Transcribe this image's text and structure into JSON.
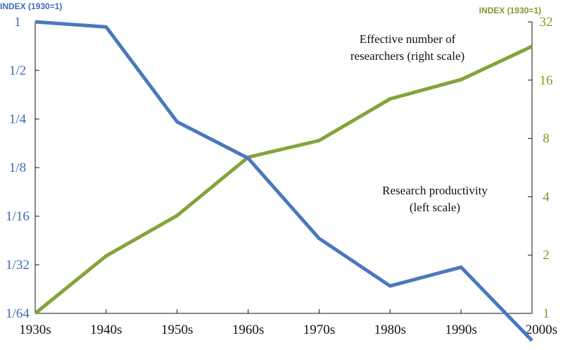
{
  "chart_data": {
    "type": "line",
    "categories": [
      "1930s",
      "1940s",
      "1950s",
      "1960s",
      "1970s",
      "1980s",
      "1990s",
      "2000s"
    ],
    "left_axis": {
      "label": "INDEX (1930=1)",
      "scale": "log2",
      "range": [
        0.015625,
        1
      ],
      "ticks": [
        1,
        0.5,
        0.25,
        0.125,
        0.0625,
        0.03125,
        0.015625
      ],
      "tick_labels": [
        "1",
        "1/2",
        "1/4",
        "1/8",
        "1/16",
        "1/32",
        "1/64"
      ],
      "color": "#3d6cb5"
    },
    "right_axis": {
      "label": "INDEX (1930=1)",
      "scale": "log2",
      "range": [
        1,
        32
      ],
      "ticks": [
        32,
        16,
        8,
        4,
        2,
        1
      ],
      "tick_labels": [
        "32",
        "16",
        "8",
        "4",
        "2",
        "1"
      ],
      "color": "#7e9a2e"
    },
    "series": [
      {
        "key": "productivity",
        "axis": "left",
        "color": "#4a78be",
        "values": [
          1,
          0.93,
          0.24,
          0.143,
          0.0455,
          0.0231,
          0.0302,
          0.0106
        ]
      },
      {
        "key": "researchers",
        "axis": "right",
        "color": "#85a33a",
        "values": [
          1,
          1.98,
          3.2,
          6.4,
          7.8,
          12.8,
          16.1,
          23.9
        ]
      }
    ],
    "annotations": {
      "researchers": [
        "Effective number of",
        "researchers (right scale)"
      ],
      "productivity": [
        "Research productivity",
        "(left scale)"
      ]
    },
    "grid": false
  }
}
